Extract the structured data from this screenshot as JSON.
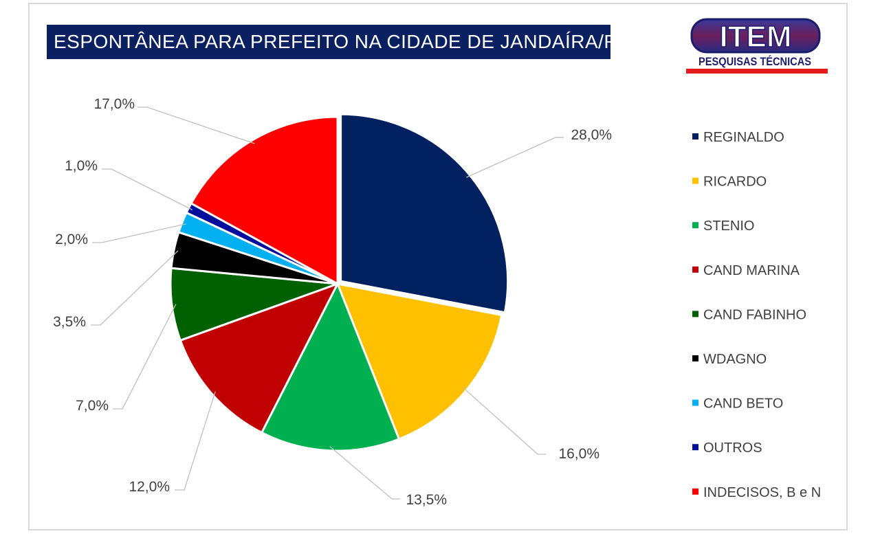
{
  "title": "ESPONTÂNEA PARA PREFEITO NA CIDADE DE JANDAÍRA/RN",
  "logo": {
    "brand": "ITEM",
    "tagline": "PESQUISAS TÉCNICAS",
    "colors": {
      "outline": "#1c1c6e",
      "band": "#6b1f5c",
      "underline": "#e31b1b"
    }
  },
  "chart_data": {
    "type": "pie",
    "title": "ESPONTÂNEA PARA PREFEITO NA CIDADE DE JANDAÍRA/RN",
    "legend_position": "right",
    "slices": [
      {
        "name": "REGINALDO",
        "value": 28.0,
        "label": "28,0%",
        "color": "#002060"
      },
      {
        "name": "RICARDO",
        "value": 16.0,
        "label": "16,0%",
        "color": "#ffc000"
      },
      {
        "name": "STENIO",
        "value": 13.5,
        "label": "13,5%",
        "color": "#00b050"
      },
      {
        "name": "CAND MARINA",
        "value": 12.0,
        "label": "12,0%",
        "color": "#c00000"
      },
      {
        "name": "CAND FABINHO",
        "value": 7.0,
        "label": "7,0%",
        "color": "#006100"
      },
      {
        "name": "WDAGNO",
        "value": 3.5,
        "label": "3,5%",
        "color": "#000000"
      },
      {
        "name": "CAND BETO",
        "value": 2.0,
        "label": "2,0%",
        "color": "#00b0f0"
      },
      {
        "name": "OUTROS",
        "value": 1.0,
        "label": "1,0%",
        "color": "#000e9c"
      },
      {
        "name": "INDECISOS, B e N",
        "value": 17.0,
        "label": "17,0%",
        "color": "#ff0000"
      }
    ]
  }
}
